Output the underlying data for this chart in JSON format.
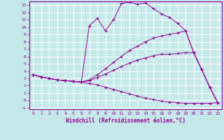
{
  "xlabel": "Windchill (Refroidissement éolien,°C)",
  "background_color": "#c5e8e8",
  "line_color": "#990099",
  "grid_color": "#b0d8d8",
  "xlim": [
    -0.5,
    23.5
  ],
  "ylim": [
    -1.2,
    13.5
  ],
  "xticks": [
    0,
    1,
    2,
    3,
    4,
    5,
    6,
    7,
    8,
    9,
    10,
    11,
    12,
    13,
    14,
    15,
    16,
    17,
    18,
    19,
    20,
    21,
    22,
    23
  ],
  "yticks": [
    -1,
    0,
    1,
    2,
    3,
    4,
    5,
    6,
    7,
    8,
    9,
    10,
    11,
    12,
    13
  ],
  "series": [
    {
      "x": [
        0,
        1,
        2,
        3,
        4,
        5,
        6,
        7,
        8,
        9,
        10,
        11,
        12,
        13,
        14,
        15,
        16,
        17,
        18,
        19,
        20,
        21,
        22,
        23
      ],
      "y": [
        3.5,
        3.2,
        3.0,
        2.8,
        2.7,
        2.6,
        2.5,
        10.2,
        11.2,
        9.5,
        11.0,
        13.2,
        13.4,
        13.1,
        13.3,
        12.5,
        11.8,
        11.3,
        10.5,
        9.5,
        6.5,
        4.2,
        1.8,
        -0.3
      ]
    },
    {
      "x": [
        0,
        1,
        2,
        3,
        4,
        5,
        6,
        7,
        8,
        9,
        10,
        11,
        12,
        13,
        14,
        15,
        16,
        17,
        18,
        19,
        20,
        21,
        22,
        23
      ],
      "y": [
        3.5,
        3.2,
        3.0,
        2.8,
        2.7,
        2.6,
        2.5,
        2.8,
        3.5,
        4.3,
        5.2,
        6.0,
        6.8,
        7.4,
        8.0,
        8.5,
        8.8,
        9.0,
        9.2,
        9.5,
        6.5,
        4.2,
        1.8,
        -0.3
      ]
    },
    {
      "x": [
        0,
        1,
        2,
        3,
        4,
        5,
        6,
        7,
        8,
        9,
        10,
        11,
        12,
        13,
        14,
        15,
        16,
        17,
        18,
        19,
        20,
        21,
        22,
        23
      ],
      "y": [
        3.5,
        3.2,
        3.0,
        2.8,
        2.7,
        2.6,
        2.5,
        2.7,
        3.1,
        3.6,
        4.1,
        4.6,
        5.1,
        5.5,
        5.8,
        6.1,
        6.3,
        6.3,
        6.4,
        6.5,
        6.5,
        4.2,
        1.8,
        -0.3
      ]
    },
    {
      "x": [
        0,
        1,
        2,
        3,
        4,
        5,
        6,
        7,
        8,
        9,
        10,
        11,
        12,
        13,
        14,
        15,
        16,
        17,
        18,
        19,
        20,
        21,
        22,
        23
      ],
      "y": [
        3.5,
        3.2,
        3.0,
        2.8,
        2.7,
        2.6,
        2.5,
        2.3,
        2.1,
        1.8,
        1.5,
        1.2,
        0.9,
        0.6,
        0.3,
        0.1,
        -0.1,
        -0.2,
        -0.3,
        -0.4,
        -0.4,
        -0.4,
        -0.4,
        -0.3
      ]
    }
  ]
}
